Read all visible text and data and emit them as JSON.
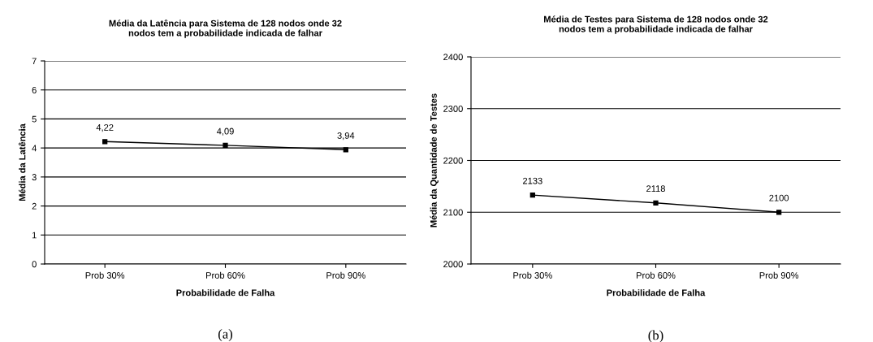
{
  "chart_data": [
    {
      "type": "line",
      "title": "Média da Latência para Sistema de 128 nodos onde 32\nnodos tem a probabilidade indicada de falhar",
      "xlabel": "Probabilidade de Falha",
      "ylabel": "Média da Latência",
      "categories": [
        "Prob 30%",
        "Prob 60%",
        "Prob 90%"
      ],
      "series": [
        {
          "color": "#000000",
          "values": [
            4.22,
            4.09,
            3.94
          ],
          "value_labels": [
            "4,22",
            "4,09",
            "3,94"
          ]
        }
      ],
      "ylim": [
        0,
        7
      ],
      "yticks": [
        0,
        1,
        2,
        3,
        4,
        5,
        6,
        7
      ],
      "grid": "y",
      "marker": "square",
      "line_style": "solid",
      "annotations": [
        "(a)"
      ]
    },
    {
      "type": "line",
      "title": "Média de Testes para Sistema de 128 nodos onde 32\nnodos tem a probabilidade indicada de falhar",
      "xlabel": "Probabilidade de Falha",
      "ylabel": "Média da Quantidade de Testes",
      "categories": [
        "Prob 30%",
        "Prob 60%",
        "Prob 90%"
      ],
      "series": [
        {
          "color": "#000000",
          "values": [
            2133,
            2118,
            2100
          ]
        }
      ],
      "ylim": [
        2000,
        2400
      ],
      "yticks": [
        2000,
        2100,
        2200,
        2300,
        2400
      ],
      "grid": "y",
      "marker": "square",
      "line_style": "solid",
      "data_labels": true,
      "annotations": [
        "(b)"
      ]
    }
  ]
}
